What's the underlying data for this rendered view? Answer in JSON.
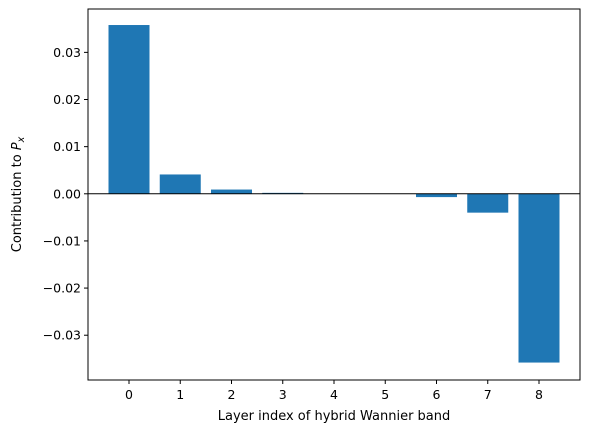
{
  "chart_data": {
    "type": "bar",
    "xlabel": "Layer index of hybrid Wannier band",
    "ylabel_prefix": "Contribution to ",
    "ylabel_symbol": "P",
    "ylabel_subscript": "x",
    "categories": [
      "0",
      "1",
      "2",
      "3",
      "4",
      "5",
      "6",
      "7",
      "8"
    ],
    "values": [
      0.0358,
      0.0041,
      0.0009,
      0.0002,
      0.0,
      0.0,
      -0.0007,
      -0.004,
      -0.0358
    ],
    "ylim": [
      -0.0395,
      0.0392
    ],
    "xlim": [
      -0.8,
      8.8
    ],
    "yticks": [
      -0.03,
      -0.02,
      -0.01,
      0.0,
      0.01,
      0.02,
      0.03
    ],
    "ytick_labels": [
      "−0.03",
      "−0.02",
      "−0.01",
      "0.00",
      "0.01",
      "0.02",
      "0.03"
    ],
    "bar_color": "#1f77b4",
    "zero_line": true,
    "grid": false
  }
}
